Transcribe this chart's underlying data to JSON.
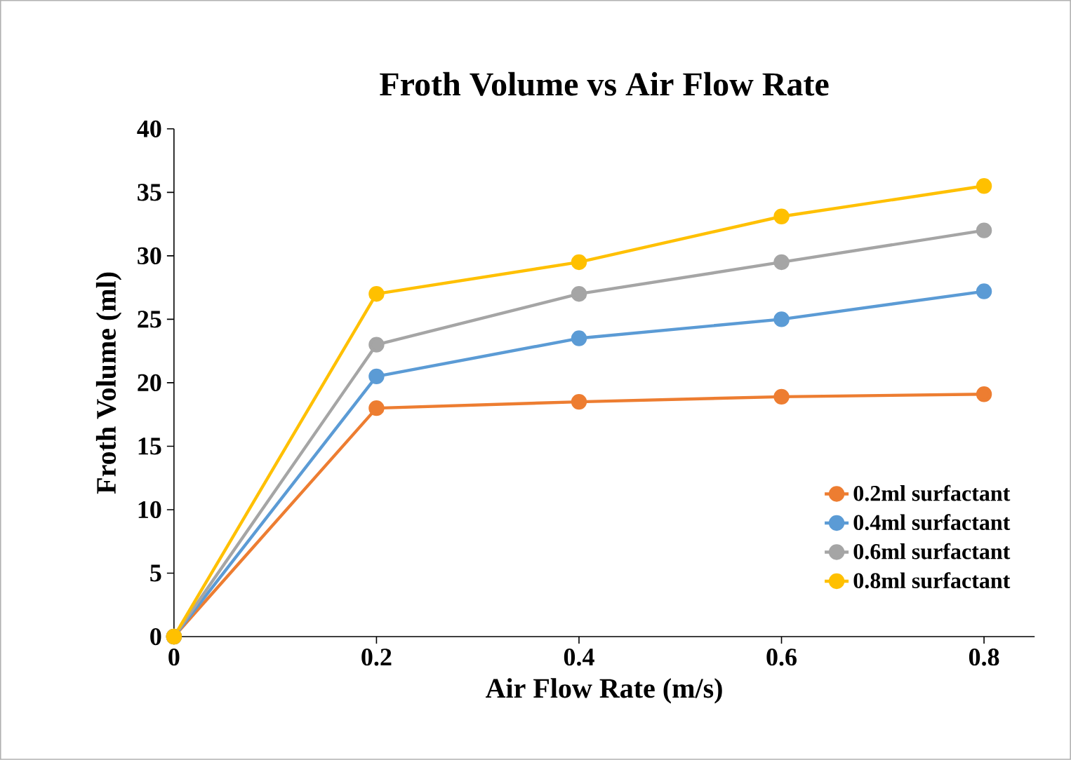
{
  "chart_data": {
    "type": "line",
    "title": "Froth Volume vs Air Flow Rate",
    "xlabel": "Air Flow Rate (m/s)",
    "ylabel": "Froth Volume (ml)",
    "x": [
      0,
      0.2,
      0.4,
      0.6,
      0.8
    ],
    "series": [
      {
        "name": "0.2ml surfactant",
        "color": "#ed7d31",
        "values": [
          0,
          18.0,
          18.5,
          18.9,
          19.1
        ]
      },
      {
        "name": "0.4ml surfactant",
        "color": "#5b9bd5",
        "values": [
          0,
          20.5,
          23.5,
          25.0,
          27.2
        ]
      },
      {
        "name": "0.6ml surfactant",
        "color": "#a5a5a5",
        "values": [
          0,
          23.0,
          27.0,
          29.5,
          32.0
        ]
      },
      {
        "name": "0.8ml surfactant",
        "color": "#ffc000",
        "values": [
          0,
          27.0,
          29.5,
          33.1,
          35.5
        ]
      }
    ],
    "xlim": [
      0,
      0.85
    ],
    "xticks": [
      0,
      0.2,
      0.4,
      0.6,
      0.8
    ],
    "ylim": [
      0,
      40
    ],
    "yticks": [
      0,
      5,
      10,
      15,
      20,
      25,
      30,
      35,
      40
    ],
    "grid": false,
    "legend": "bottom right",
    "marker": "circle",
    "line_style": "solid"
  }
}
